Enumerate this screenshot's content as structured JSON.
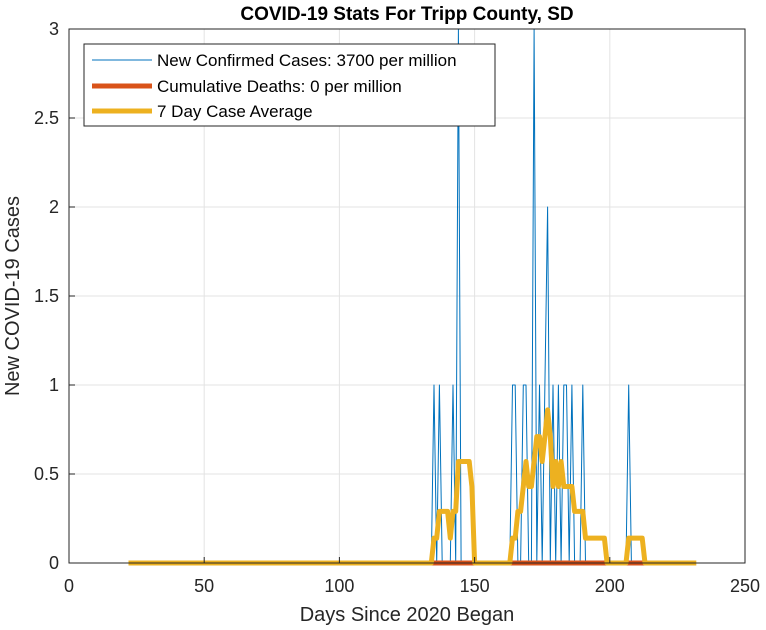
{
  "chart_data": {
    "type": "line",
    "title": "COVID-19 Stats For Tripp County, SD",
    "xlabel": "Days Since 2020 Began",
    "ylabel": "New COVID-19 Cases",
    "xlim": [
      0,
      250
    ],
    "ylim": [
      0,
      3
    ],
    "xticks": [
      "0",
      "50",
      "100",
      "150",
      "200",
      "250"
    ],
    "yticks": [
      "0",
      "0.5",
      "1",
      "1.5",
      "2",
      "2.5",
      "3"
    ],
    "grid": true,
    "legend_position": "top-left",
    "series": [
      {
        "name": "New Confirmed Cases: 3700 per million",
        "color": "#0072BD",
        "x": [
          22,
          134,
          135,
          136,
          137,
          138,
          141,
          142,
          143,
          144,
          145,
          146,
          163,
          164,
          165,
          166,
          167,
          168,
          169,
          170,
          171,
          172,
          173,
          174,
          175,
          176,
          177,
          178,
          179,
          180,
          181,
          182,
          183,
          184,
          185,
          186,
          187,
          188,
          189,
          190,
          191,
          192,
          193,
          206,
          207,
          208,
          232
        ],
        "y": [
          0,
          0,
          1,
          0,
          1,
          0,
          0,
          1,
          0,
          3,
          0,
          0,
          0,
          1,
          1,
          0,
          0,
          1,
          1,
          0,
          0,
          3,
          0,
          1,
          0,
          1,
          2,
          0,
          1,
          0,
          1,
          0,
          1,
          1,
          0,
          1,
          0,
          0,
          0,
          1,
          0,
          0,
          0,
          0,
          1,
          0,
          0
        ]
      },
      {
        "name": "Cumulative Deaths: 0 per million",
        "color": "#D95319",
        "x": [
          134,
          213
        ],
        "y": [
          0,
          0
        ]
      },
      {
        "name": "7 Day Case Average",
        "color": "#EDB120",
        "x": [
          22,
          134,
          135,
          136,
          137,
          138,
          139,
          140,
          141,
          142,
          143,
          144,
          145,
          146,
          147,
          148,
          149,
          150,
          151,
          163,
          164,
          165,
          166,
          167,
          168,
          169,
          170,
          171,
          172,
          173,
          174,
          175,
          176,
          177,
          178,
          179,
          180,
          181,
          182,
          183,
          184,
          185,
          186,
          187,
          188,
          189,
          190,
          191,
          192,
          193,
          194,
          195,
          196,
          197,
          198,
          199,
          200,
          205,
          206,
          207,
          208,
          209,
          210,
          211,
          212,
          213,
          214,
          232
        ],
        "y": [
          0,
          0,
          0.14,
          0.14,
          0.29,
          0.29,
          0.29,
          0.29,
          0.14,
          0.29,
          0.29,
          0.57,
          0.57,
          0.57,
          0.57,
          0.57,
          0.43,
          0,
          0,
          0,
          0.14,
          0.14,
          0.29,
          0.29,
          0.43,
          0.57,
          0.43,
          0.43,
          0.57,
          0.71,
          0.71,
          0.57,
          0.71,
          0.86,
          0.71,
          0.43,
          0.57,
          0.43,
          0.57,
          0.43,
          0.43,
          0.43,
          0.43,
          0.29,
          0.29,
          0.29,
          0.29,
          0.14,
          0.14,
          0.14,
          0.14,
          0.14,
          0.14,
          0.14,
          0.14,
          0,
          0,
          0,
          0,
          0.14,
          0.14,
          0.14,
          0.14,
          0.14,
          0.14,
          0,
          0,
          0
        ]
      }
    ]
  }
}
